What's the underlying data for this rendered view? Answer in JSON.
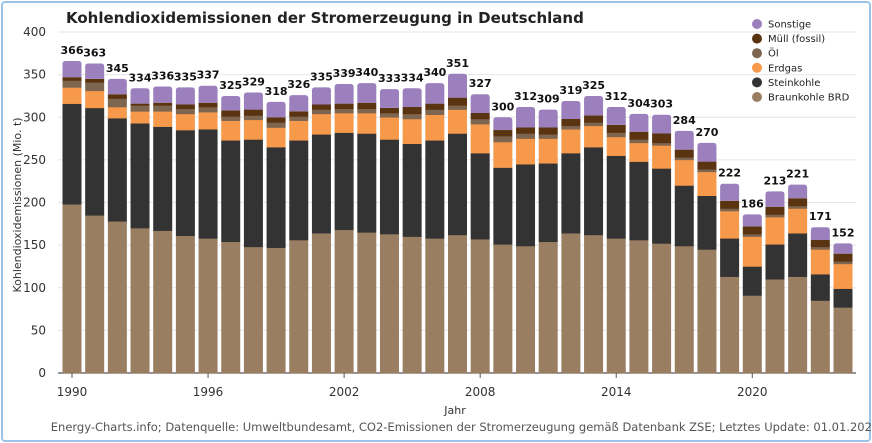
{
  "chart_data": {
    "type": "bar",
    "stacked": true,
    "title": "Kohlendioxidemissionen der Stromerzeugung in Deutschland",
    "xlabel": "Jahr",
    "ylabel": "Kohlendioxidemissionen (Mio. t)",
    "ylim": [
      0,
      400
    ],
    "yticks": [
      0,
      50,
      100,
      150,
      200,
      250,
      300,
      350,
      400
    ],
    "xticks": [
      "1990",
      "1996",
      "2002",
      "2008",
      "2014",
      "2020"
    ],
    "grid": true,
    "legend_position": "top-right",
    "categories": [
      1990,
      1991,
      1992,
      1993,
      1994,
      1995,
      1996,
      1997,
      1998,
      1999,
      2000,
      2001,
      2002,
      2003,
      2004,
      2005,
      2006,
      2007,
      2008,
      2009,
      2010,
      2011,
      2012,
      2013,
      2014,
      2015,
      2016,
      2017,
      2018,
      2019,
      2020,
      2021,
      2022,
      2023,
      2024
    ],
    "totals": [
      366,
      363,
      345,
      334,
      336,
      335,
      337,
      325,
      329,
      318,
      326,
      335,
      339,
      340,
      333,
      334,
      340,
      351,
      327,
      300,
      312,
      309,
      319,
      325,
      312,
      304,
      303,
      284,
      270,
      222,
      186,
      213,
      221,
      171,
      152
    ],
    "series": [
      {
        "name": "Braunkohle BRD",
        "color": "#9a7e62",
        "values": [
          198,
          185,
          178,
          170,
          167,
          161,
          158,
          154,
          148,
          147,
          156,
          164,
          168,
          165,
          163,
          160,
          158,
          162,
          157,
          151,
          149,
          154,
          164,
          162,
          158,
          156,
          152,
          149,
          145,
          113,
          91,
          110,
          113,
          85,
          77
        ]
      },
      {
        "name": "Steinkohle",
        "color": "#333333",
        "values": [
          118,
          126,
          121,
          123,
          122,
          124,
          128,
          119,
          126,
          118,
          117,
          116,
          114,
          116,
          111,
          109,
          115,
          119,
          101,
          90,
          96,
          92,
          94,
          103,
          97,
          92,
          88,
          71,
          63,
          45,
          34,
          41,
          51,
          31,
          22
        ]
      },
      {
        "name": "Erdgas",
        "color": "#f7994a",
        "values": [
          19,
          20,
          13,
          14,
          18,
          19,
          20,
          23,
          23,
          23,
          23,
          24,
          23,
          24,
          26,
          29,
          30,
          28,
          34,
          30,
          30,
          29,
          28,
          25,
          22,
          22,
          27,
          30,
          28,
          32,
          35,
          32,
          29,
          29,
          29
        ]
      },
      {
        "name": "Öl",
        "color": "#7d6550",
        "values": [
          8,
          10,
          10,
          7,
          7,
          6,
          6,
          5,
          5,
          6,
          5,
          5,
          5,
          5,
          5,
          6,
          6,
          5,
          6,
          7,
          6,
          5,
          4,
          4,
          5,
          4,
          3,
          3,
          3,
          3,
          3,
          3,
          3,
          3,
          3
        ]
      },
      {
        "name": "Müll (fossil)",
        "color": "#5a3410",
        "values": [
          4,
          4,
          5,
          2,
          3,
          5,
          5,
          7,
          7,
          6,
          6,
          6,
          6,
          7,
          6,
          8,
          7,
          9,
          7,
          7,
          7,
          8,
          8,
          8,
          9,
          9,
          11,
          9,
          9,
          9,
          9,
          9,
          9,
          8,
          9
        ]
      },
      {
        "name": "Sonstige",
        "color": "#9b80bd",
        "values": [
          19,
          18,
          18,
          18,
          19,
          20,
          20,
          17,
          20,
          18,
          19,
          20,
          23,
          23,
          22,
          22,
          24,
          28,
          22,
          15,
          24,
          21,
          21,
          23,
          21,
          21,
          22,
          22,
          22,
          20,
          14,
          18,
          16,
          15,
          12
        ]
      }
    ],
    "footer": "Energy-Charts.info; Datenquelle: Umweltbundesamt, CO2-Emissionen der Stromerzeugung gemäß Datenbank ZSE; Letztes Update: 01.01.2025"
  }
}
